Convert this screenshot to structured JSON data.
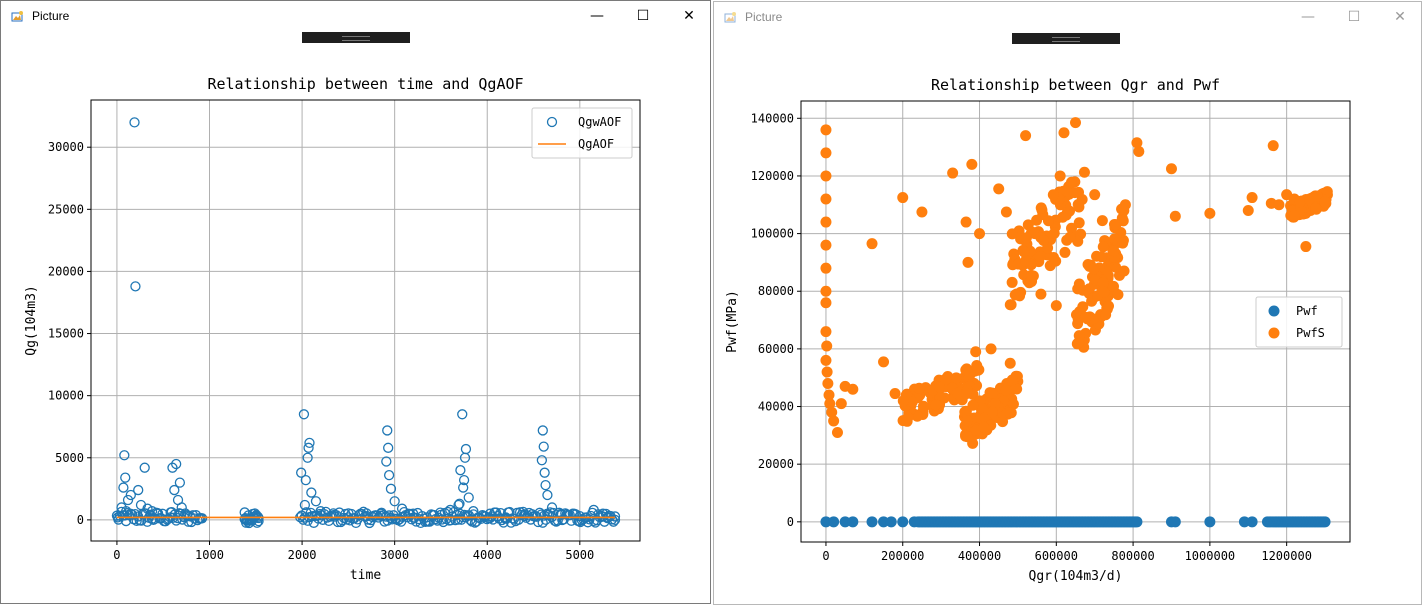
{
  "windows": [
    {
      "title": "Picture",
      "controls": {
        "minimize": "—",
        "maximize": "☐",
        "close": "✕"
      },
      "icon": "picture-icon"
    },
    {
      "title": "Picture",
      "controls": {
        "minimize": "—",
        "maximize": "☐",
        "close": "✕"
      },
      "icon": "picture-icon"
    }
  ],
  "chart_data": [
    {
      "type": "scatter",
      "title": "Relationship between time and QgAOF",
      "xlabel": "time",
      "ylabel": "Qg(104m3)",
      "xlim": [
        -280,
        5650
      ],
      "ylim": [
        -1700,
        33800
      ],
      "xticks": [
        0,
        1000,
        2000,
        3000,
        4000,
        5000
      ],
      "yticks": [
        0,
        5000,
        10000,
        15000,
        20000,
        25000,
        30000
      ],
      "grid": true,
      "legend": {
        "placement": "top-right",
        "entries": [
          "QgwAOF",
          "QgAOF"
        ]
      },
      "series": [
        {
          "name": "QgwAOF",
          "marker": "hollow-circle",
          "color": "#1f77b4",
          "points": [
            [
              190,
              32000
            ],
            [
              200,
              18800
            ],
            [
              80,
              5200
            ],
            [
              90,
              3400
            ],
            [
              300,
              4200
            ],
            [
              70,
              2600
            ],
            [
              150,
              2000
            ],
            [
              230,
              2400
            ],
            [
              120,
              1600
            ],
            [
              260,
              1200
            ],
            [
              330,
              900
            ],
            [
              380,
              700
            ],
            [
              440,
              500
            ],
            [
              10,
              200
            ],
            [
              50,
              1000
            ],
            [
              100,
              700
            ],
            [
              640,
              4500
            ],
            [
              600,
              4200
            ],
            [
              680,
              3000
            ],
            [
              620,
              2400
            ],
            [
              660,
              1600
            ],
            [
              700,
              1000
            ],
            [
              580,
              600
            ],
            [
              760,
              300
            ],
            [
              900,
              150
            ],
            [
              1380,
              50
            ],
            [
              1430,
              0
            ],
            [
              1530,
              -100
            ],
            [
              2020,
              8500
            ],
            [
              2080,
              6200
            ],
            [
              2070,
              5800
            ],
            [
              2060,
              5000
            ],
            [
              1990,
              3800
            ],
            [
              2040,
              3200
            ],
            [
              2100,
              2200
            ],
            [
              2150,
              1500
            ],
            [
              2030,
              1200
            ],
            [
              2200,
              700
            ],
            [
              2350,
              400
            ],
            [
              2500,
              200
            ],
            [
              2700,
              300
            ],
            [
              2850,
              500
            ],
            [
              2920,
              7200
            ],
            [
              2930,
              5800
            ],
            [
              2910,
              4700
            ],
            [
              2940,
              3600
            ],
            [
              2960,
              2500
            ],
            [
              3000,
              1500
            ],
            [
              3080,
              900
            ],
            [
              3200,
              500
            ],
            [
              3350,
              200
            ],
            [
              3500,
              400
            ],
            [
              3600,
              800
            ],
            [
              3690,
              1200
            ],
            [
              3730,
              8500
            ],
            [
              3770,
              5700
            ],
            [
              3760,
              5000
            ],
            [
              3710,
              4000
            ],
            [
              3750,
              3200
            ],
            [
              3740,
              2600
            ],
            [
              3800,
              1800
            ],
            [
              3700,
              1300
            ],
            [
              3850,
              700
            ],
            [
              4030,
              500
            ],
            [
              4200,
              200
            ],
            [
              4400,
              300
            ],
            [
              4600,
              7200
            ],
            [
              4610,
              5900
            ],
            [
              4590,
              4800
            ],
            [
              4620,
              3800
            ],
            [
              4630,
              2800
            ],
            [
              4650,
              2000
            ],
            [
              4700,
              1000
            ],
            [
              4800,
              400
            ],
            [
              5000,
              300
            ],
            [
              5150,
              800
            ],
            [
              5250,
              500
            ],
            [
              5300,
              200
            ],
            [
              5380,
              0
            ]
          ],
          "band_ranges": [
            [
              0,
              920
            ],
            [
              1380,
              1530
            ],
            [
              1980,
              5380
            ]
          ]
        },
        {
          "name": "QgAOF",
          "marker": "line",
          "color": "#ff7f0e",
          "x": [
            0,
            5380
          ],
          "y": [
            200,
            200
          ]
        }
      ]
    },
    {
      "type": "scatter",
      "title": "Relationship between Qgr and Pwf",
      "xlabel": "Qgr(104m3/d)",
      "ylabel": "Pwf(MPa)",
      "xlim": [
        -65000,
        1365000
      ],
      "ylim": [
        -7000,
        146000
      ],
      "xticks": [
        0,
        200000,
        400000,
        600000,
        800000,
        1000000,
        1200000
      ],
      "yticks": [
        0,
        20000,
        40000,
        60000,
        80000,
        100000,
        120000,
        140000
      ],
      "grid": true,
      "legend": {
        "placement": "center-right",
        "entries": [
          "Pwf",
          "PwfS"
        ]
      },
      "series": [
        {
          "name": "Pwf",
          "marker": "filled-circle",
          "color": "#1f77b4",
          "points": [
            [
              0,
              0
            ],
            [
              20000,
              0
            ],
            [
              50000,
              0
            ],
            [
              70000,
              0
            ],
            [
              120000,
              0
            ],
            [
              150000,
              0
            ],
            [
              170000,
              0
            ],
            [
              200000,
              0
            ],
            [
              230000,
              0
            ],
            [
              900000,
              0
            ],
            [
              910000,
              0
            ],
            [
              1000000,
              0
            ],
            [
              1090000,
              0
            ],
            [
              1110000,
              0
            ]
          ],
          "band_ranges": [
            [
              240000,
              810000
            ],
            [
              1150000,
              1300000
            ]
          ]
        },
        {
          "name": "PwfS",
          "marker": "filled-circle",
          "color": "#ff7f0e",
          "points": [
            [
              0,
              136000
            ],
            [
              0,
              128000
            ],
            [
              0,
              120000
            ],
            [
              0,
              112000
            ],
            [
              0,
              104000
            ],
            [
              0,
              96000
            ],
            [
              0,
              88000
            ],
            [
              0,
              80000
            ],
            [
              0,
              76000
            ],
            [
              0,
              66000
            ],
            [
              2000,
              61000
            ],
            [
              0,
              56000
            ],
            [
              3000,
              52000
            ],
            [
              5000,
              48000
            ],
            [
              8000,
              44000
            ],
            [
              10000,
              41000
            ],
            [
              15000,
              38000
            ],
            [
              20000,
              35000
            ],
            [
              30000,
              31000
            ],
            [
              40000,
              41000
            ],
            [
              50000,
              47000
            ],
            [
              70000,
              46000
            ],
            [
              120000,
              96500
            ],
            [
              150000,
              55500
            ],
            [
              180000,
              44500
            ],
            [
              200000,
              112500
            ],
            [
              250000,
              107500
            ],
            [
              330000,
              121000
            ],
            [
              370000,
              90000
            ],
            [
              365000,
              104000
            ],
            [
              380000,
              124000
            ],
            [
              390000,
              59000
            ],
            [
              400000,
              100000
            ],
            [
              430000,
              60000
            ],
            [
              450000,
              115500
            ],
            [
              470000,
              107500
            ],
            [
              480000,
              55000
            ],
            [
              520000,
              134000
            ],
            [
              560000,
              79000
            ],
            [
              600000,
              75000
            ],
            [
              610000,
              120000
            ],
            [
              620000,
              135000
            ],
            [
              650000,
              138500
            ],
            [
              700000,
              113500
            ],
            [
              720000,
              104500
            ],
            [
              750000,
              94000
            ],
            [
              770000,
              108500
            ],
            [
              780000,
              110000
            ],
            [
              810000,
              131500
            ],
            [
              815000,
              128500
            ],
            [
              900000,
              122500
            ],
            [
              910000,
              106000
            ],
            [
              1000000,
              107000
            ],
            [
              1100000,
              108000
            ],
            [
              1110000,
              112500
            ],
            [
              1160000,
              110500
            ],
            [
              1165000,
              130500
            ],
            [
              1180000,
              110000
            ],
            [
              1200000,
              113500
            ],
            [
              1220000,
              112000
            ],
            [
              1235000,
              111000
            ],
            [
              1250000,
              95500
            ],
            [
              1260000,
              112000
            ],
            [
              1280000,
              113000
            ],
            [
              1300000,
              111000
            ]
          ],
          "clusters": [
            {
              "x": [
                200000,
                400000
              ],
              "y": [
                34000,
                55000
              ]
            },
            {
              "x": [
                360000,
                500000
              ],
              "y": [
                25000,
                52000
              ]
            },
            {
              "x": [
                480000,
                680000
              ],
              "y": [
                75000,
                125000
              ]
            },
            {
              "x": [
                650000,
                780000
              ],
              "y": [
                55000,
                110000
              ]
            },
            {
              "x": [
                1210000,
                1310000
              ],
              "y": [
                105000,
                115000
              ]
            }
          ]
        }
      ]
    }
  ]
}
